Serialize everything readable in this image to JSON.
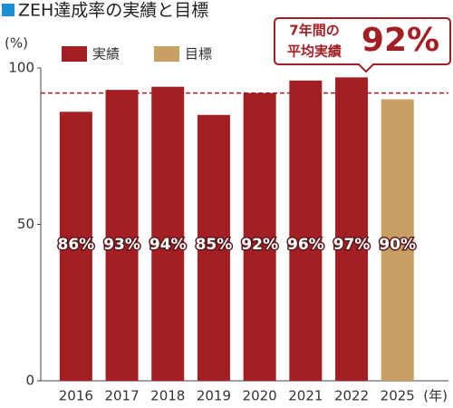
{
  "chart_data": {
    "type": "bar",
    "title": "ZEH達成率の実績と目標",
    "y_label": "(%)",
    "x_label": "(年)",
    "categories": [
      "2016",
      "2017",
      "2018",
      "2019",
      "2020",
      "2021",
      "2022",
      "2025"
    ],
    "series": [
      {
        "name": "実績",
        "color": "#a31f24",
        "values": [
          86,
          93,
          94,
          85,
          92,
          96,
          97,
          null
        ],
        "value_labels": [
          "86%",
          "93%",
          "94%",
          "85%",
          "92%",
          "96%",
          "97%",
          null
        ]
      },
      {
        "name": "目標",
        "color": "#c9a063",
        "values": [
          null,
          null,
          null,
          null,
          null,
          null,
          null,
          90
        ],
        "value_labels": [
          null,
          null,
          null,
          null,
          null,
          null,
          null,
          "90%"
        ]
      }
    ],
    "reference_line": {
      "value": 92,
      "label_lines": [
        "7年間の",
        "平均実績"
      ],
      "value_label": "92%",
      "color": "#a31f24"
    },
    "ylim": [
      0,
      100
    ],
    "yticks": [
      0,
      50,
      100
    ],
    "grid": false
  }
}
